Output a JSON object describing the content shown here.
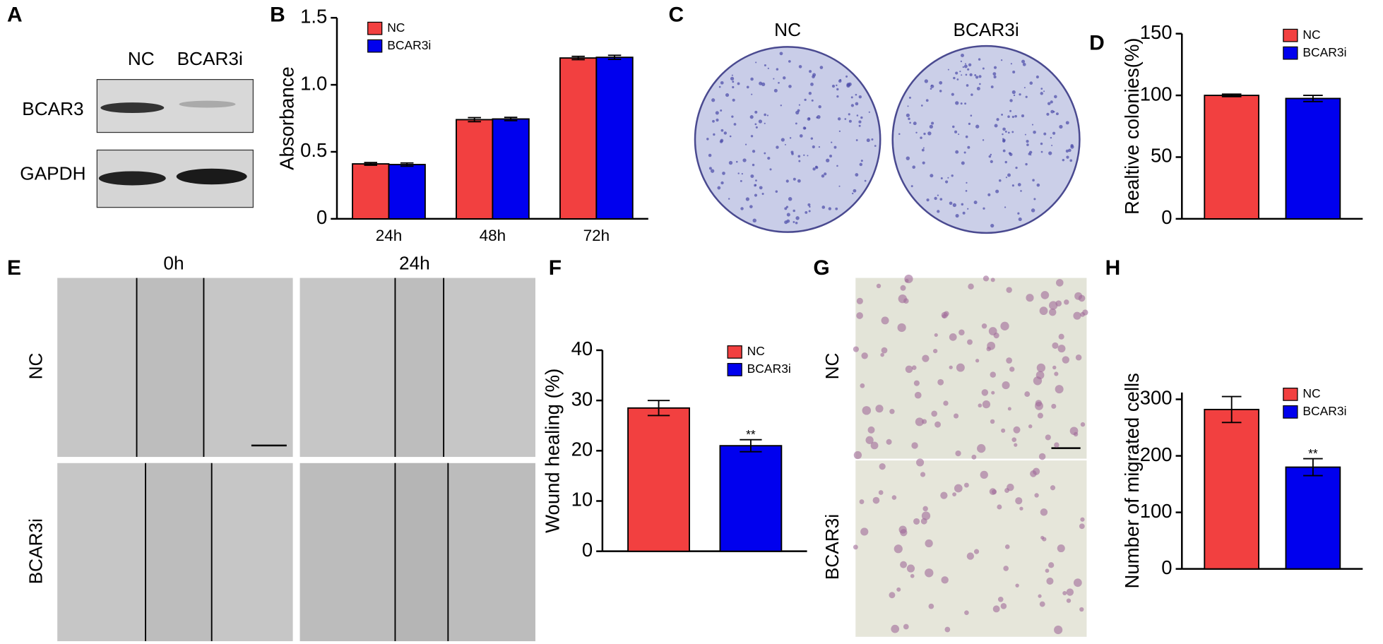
{
  "panel_labels": [
    "A",
    "B",
    "C",
    "D",
    "E",
    "F",
    "G",
    "H"
  ],
  "western_blot": {
    "lanes": [
      "NC",
      "BCAR3i"
    ],
    "proteins": [
      "BCAR3",
      "GAPDH"
    ]
  },
  "colony_images": {
    "labels": [
      "NC",
      "BCAR3i"
    ]
  },
  "wound_images": {
    "times": [
      "0h",
      "24h"
    ],
    "groups": [
      "NC",
      "BCAR3i"
    ]
  },
  "transwell_images": {
    "groups": [
      "NC",
      "BCAR3i"
    ]
  },
  "chart_data": [
    {
      "type": "bar",
      "y_label": "Absorbance",
      "categories": [
        "24h",
        "48h",
        "72h"
      ],
      "series": [
        {
          "name": "NC",
          "color": "#f24040",
          "values": [
            0.41,
            0.74,
            1.2
          ],
          "errors": [
            0.01,
            0.015,
            0.012
          ]
        },
        {
          "name": "BCAR3i",
          "color": "#0000ee",
          "values": [
            0.405,
            0.745,
            1.205
          ],
          "errors": [
            0.012,
            0.012,
            0.015
          ]
        }
      ],
      "ylim": [
        0,
        1.5
      ],
      "yticks": [
        0,
        0.5,
        {
          "value": 1,
          "label": "1.0"
        },
        1.5
      ],
      "legend": "upper left"
    },
    {
      "type": "bar",
      "y_label": "Realtive colonies(%)",
      "categories": [
        null
      ],
      "series": [
        {
          "name": "NC",
          "color": "#f24040",
          "values": [
            100
          ],
          "errors": [
            1
          ]
        },
        {
          "name": "BCAR3i",
          "color": "#0000ee",
          "values": [
            97.5
          ],
          "errors": [
            2.5
          ]
        }
      ],
      "ylim": [
        0,
        150
      ],
      "yticks": [
        0,
        50,
        100,
        150
      ],
      "legend": "upper right"
    },
    {
      "type": "bar",
      "y_label": "Wound healing (%)",
      "categories": [
        null
      ],
      "series": [
        {
          "name": "NC",
          "color": "#f24040",
          "values": [
            28.5
          ],
          "errors": [
            1.5
          ]
        },
        {
          "name": "BCAR3i",
          "color": "#0000ee",
          "values": [
            21
          ],
          "errors": [
            1.2
          ],
          "annotations": [
            "**"
          ]
        }
      ],
      "ylim": [
        0,
        40
      ],
      "yticks": [
        0,
        10,
        20,
        30,
        40
      ],
      "legend": "upper right"
    },
    {
      "type": "bar",
      "y_label": "Number of migrated cells",
      "categories": [
        null
      ],
      "series": [
        {
          "name": "NC",
          "color": "#f24040",
          "values": [
            282
          ],
          "errors": [
            23
          ]
        },
        {
          "name": "BCAR3i",
          "color": "#0000ee",
          "values": [
            180
          ],
          "errors": [
            15
          ],
          "annotations": [
            "**"
          ]
        }
      ],
      "ylim": [
        0,
        312
      ],
      "yticks": [
        0,
        100,
        200,
        300
      ],
      "legend": "upper right"
    }
  ]
}
